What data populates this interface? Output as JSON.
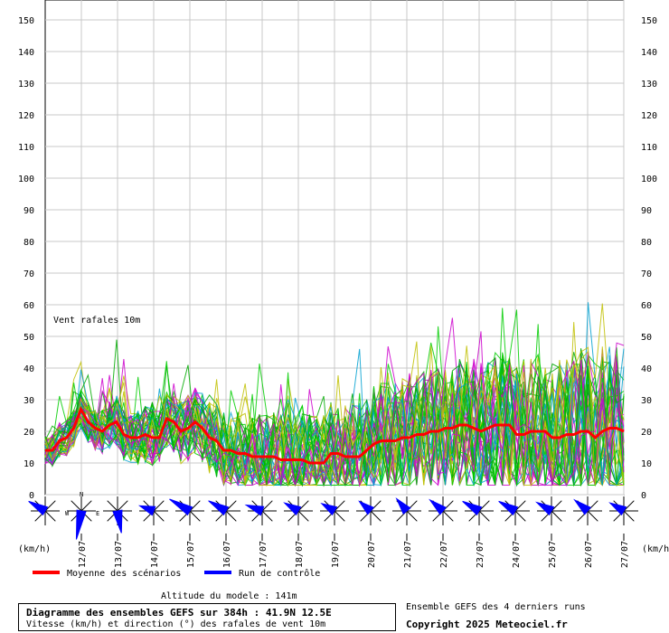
{
  "chart_data": {
    "type": "line",
    "title": "Vent rafales 10m",
    "ylabel_left": "(km/h)",
    "ylabel_right": "(km/h)",
    "ylim": [
      0,
      150
    ],
    "yticks": [
      0,
      10,
      20,
      30,
      40,
      50,
      60,
      70,
      80,
      90,
      100,
      110,
      120,
      130,
      140,
      150
    ],
    "xlim": [
      "2025-07-11T00:00",
      "2025-07-27T00:00"
    ],
    "date_labels": [
      "12/07",
      "13/07",
      "14/07",
      "15/07",
      "16/07",
      "17/07",
      "18/07",
      "19/07",
      "20/07",
      "21/07",
      "22/07",
      "23/07",
      "24/07",
      "25/07",
      "26/07",
      "27/07"
    ],
    "grid": true,
    "series": [
      {
        "name": "Moyenne des scénarios",
        "color": "#ff0000",
        "values": [
          14,
          14,
          17,
          18,
          21,
          27,
          23,
          21,
          20,
          22,
          23,
          19,
          18,
          18,
          19,
          18,
          18,
          24,
          23,
          20,
          21,
          23,
          21,
          18,
          17,
          14,
          14,
          13,
          13,
          12,
          12,
          12,
          12,
          11,
          11,
          11,
          11,
          10,
          10,
          10,
          13,
          13,
          12,
          12,
          12,
          14,
          16,
          17,
          17,
          17,
          18,
          18,
          19,
          19,
          20,
          20,
          21,
          21,
          22,
          22,
          21,
          20,
          21,
          22,
          22,
          22,
          19,
          19,
          20,
          20,
          20,
          18,
          18,
          19,
          19,
          20,
          20,
          18,
          20,
          21,
          21,
          20
        ]
      }
    ],
    "ensemble_members_shown": true,
    "ensemble_colors": [
      "#00cc00",
      "#c0c000",
      "#cc00cc",
      "#00a0d0",
      "#00aa00"
    ]
  },
  "wind_roses": [
    {
      "dir": 300,
      "speed": 22
    },
    {
      "dir": 190,
      "speed": 40
    },
    {
      "dir": 170,
      "speed": 28
    },
    {
      "dir": 290,
      "speed": 14
    },
    {
      "dir": 300,
      "speed": 30
    },
    {
      "dir": 300,
      "speed": 24
    },
    {
      "dir": 290,
      "speed": 18
    },
    {
      "dir": 300,
      "speed": 16
    },
    {
      "dir": 300,
      "speed": 14
    },
    {
      "dir": 310,
      "speed": 14
    },
    {
      "dir": 320,
      "speed": 16
    },
    {
      "dir": 310,
      "speed": 18
    },
    {
      "dir": 300,
      "speed": 22
    },
    {
      "dir": 300,
      "speed": 22
    },
    {
      "dir": 300,
      "speed": 18
    },
    {
      "dir": 310,
      "speed": 18
    },
    {
      "dir": 300,
      "speed": 16
    }
  ],
  "compass": {
    "n": "N",
    "w": "W",
    "e": "E"
  },
  "legend": {
    "mean_label": "Moyenne des scénarios",
    "control_label": "Run de contrôle",
    "mean_color": "#ff0000",
    "control_color": "#0000ff"
  },
  "info": {
    "title": "Diagramme des ensembles GEFS sur 384h : 41.9N 12.5E",
    "subtitle": "Vitesse (km/h) et direction (°) des rafales de vent 10m",
    "altitude": "Altitude du modele : 141m",
    "ensemble_note": "Ensemble GEFS des 4 derniers runs",
    "copyright": "Copyright 2025 Meteociel.fr"
  }
}
